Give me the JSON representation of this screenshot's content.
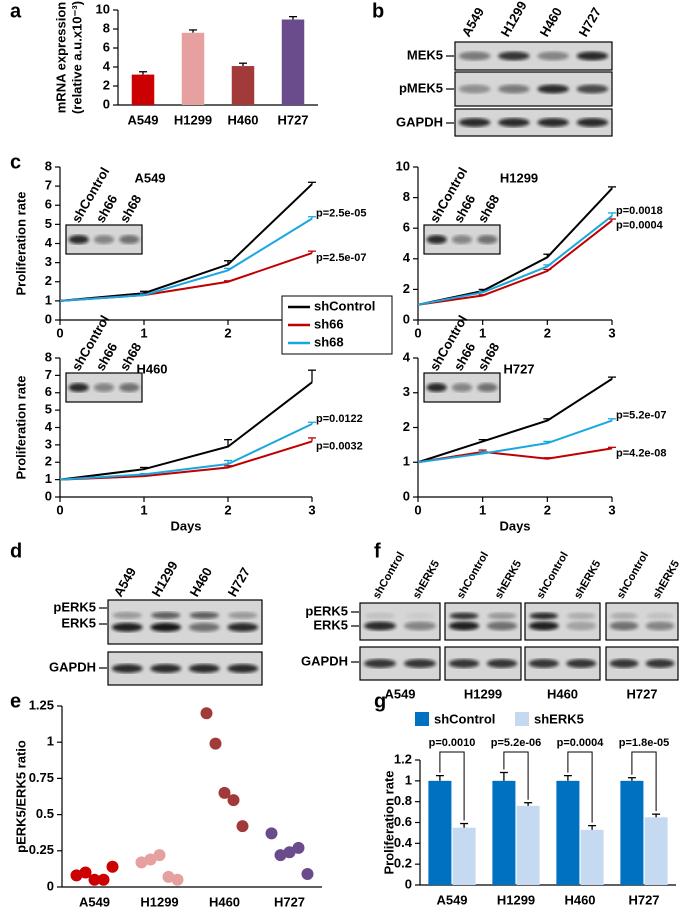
{
  "blots": {
    "b": {
      "panel": "b",
      "lanes": [
        "A549",
        "H1299",
        "H460",
        "H727"
      ],
      "rows": [
        "MEK5",
        "pMEK5",
        "GAPDH"
      ]
    },
    "d": {
      "panel": "d",
      "lanes": [
        "A549",
        "H1299",
        "H460",
        "H727"
      ],
      "rows": [
        "pERK5",
        "ERK5",
        "GAPDH"
      ]
    },
    "f": {
      "panel": "f",
      "lanes": [
        "shControl",
        "shERK5"
      ],
      "groups": [
        "A549",
        "H1299",
        "H460",
        "H727"
      ],
      "rows": [
        "pERK5",
        "ERK5",
        "GAPDH"
      ]
    },
    "c_inset": {
      "lanes": [
        "shControl",
        "sh66",
        "sh68"
      ]
    }
  },
  "chart_data": [
    {
      "type": "bar",
      "panel": "a",
      "ylabel": [
        "mRNA expression",
        "(relative a.u.x10⁻³)"
      ],
      "categories": [
        "A549",
        "H1299",
        "H460",
        "H727"
      ],
      "values": [
        3.2,
        7.6,
        4.1,
        9.0
      ],
      "errors": [
        0.3,
        0.3,
        0.3,
        0.3
      ],
      "colors": [
        "#cc0000",
        "#e6a0a0",
        "#a33a3a",
        "#6a4c8c"
      ],
      "ylim": [
        0,
        10
      ],
      "yticks": [
        0,
        2,
        4,
        6,
        8,
        10
      ]
    },
    {
      "type": "line",
      "panel": "c",
      "title": "A549",
      "ylabel": "Proliferation rate",
      "legend": true,
      "x": [
        0,
        1,
        2,
        3
      ],
      "xlim": [
        0,
        3
      ],
      "xticks": [
        0,
        1,
        2,
        3
      ],
      "ylim": [
        0,
        8
      ],
      "yticks": [
        0,
        1,
        2,
        3,
        4,
        5,
        6,
        7,
        8
      ],
      "series": [
        {
          "name": "shControl",
          "color": "#000000",
          "values": [
            1,
            1.4,
            2.9,
            7.1
          ],
          "errors": [
            0,
            0.1,
            0.2,
            0.1
          ]
        },
        {
          "name": "sh66",
          "color": "#c00000",
          "values": [
            1,
            1.3,
            2.0,
            3.5
          ],
          "errors": [
            0,
            0.05,
            0.05,
            0.1
          ]
        },
        {
          "name": "sh68",
          "color": "#1aa7e0",
          "values": [
            1,
            1.3,
            2.6,
            5.3
          ],
          "errors": [
            0,
            0.05,
            0.1,
            0.1
          ]
        }
      ],
      "annotations": [
        "p=2.5e-05",
        "p=2.5e-07"
      ]
    },
    {
      "type": "line",
      "title": "H1299",
      "x": [
        0,
        1,
        2,
        3
      ],
      "xlim": [
        0,
        3
      ],
      "xticks": [
        0,
        1,
        2,
        3
      ],
      "ylim": [
        0,
        10
      ],
      "yticks": [
        0,
        2,
        4,
        6,
        8,
        10
      ],
      "series": [
        {
          "name": "shControl",
          "color": "#000000",
          "values": [
            1,
            1.9,
            4.1,
            8.6
          ],
          "errors": [
            0,
            0.1,
            0.2,
            0.1
          ]
        },
        {
          "name": "sh66",
          "color": "#c00000",
          "values": [
            1,
            1.6,
            3.2,
            6.5
          ],
          "errors": [
            0,
            0.05,
            0.1,
            0.1
          ]
        },
        {
          "name": "sh68",
          "color": "#1aa7e0",
          "values": [
            1,
            1.8,
            3.5,
            6.8
          ],
          "errors": [
            0,
            0.05,
            0.1,
            0.2
          ]
        }
      ],
      "annotations": [
        "p=0.0018",
        "p=0.0004"
      ]
    },
    {
      "type": "line",
      "title": "H460",
      "ylabel": "Proliferation rate",
      "xlabel": "Days",
      "x": [
        0,
        1,
        2,
        3
      ],
      "xlim": [
        0,
        3
      ],
      "xticks": [
        0,
        1,
        2,
        3
      ],
      "ylim": [
        0,
        8
      ],
      "yticks": [
        0,
        1,
        2,
        3,
        4,
        5,
        6,
        7,
        8
      ],
      "series": [
        {
          "name": "shControl",
          "color": "#000000",
          "values": [
            1,
            1.6,
            2.9,
            6.6
          ],
          "errors": [
            0,
            0.1,
            0.4,
            0.7
          ]
        },
        {
          "name": "sh66",
          "color": "#c00000",
          "values": [
            1,
            1.2,
            1.7,
            3.2
          ],
          "errors": [
            0,
            0.05,
            0.1,
            0.2
          ]
        },
        {
          "name": "sh68",
          "color": "#1aa7e0",
          "values": [
            1,
            1.3,
            1.9,
            4.2
          ],
          "errors": [
            0,
            0.05,
            0.2,
            0.1
          ]
        }
      ],
      "annotations": [
        "p=0.0122",
        "p=0.0032"
      ]
    },
    {
      "type": "line",
      "title": "H727",
      "xlabel": "Days",
      "x": [
        0,
        1,
        2,
        3
      ],
      "xlim": [
        0,
        3
      ],
      "xticks": [
        0,
        1,
        2,
        3
      ],
      "ylim": [
        0,
        4
      ],
      "yticks": [
        0,
        1,
        2,
        3,
        4
      ],
      "series": [
        {
          "name": "shControl",
          "color": "#000000",
          "values": [
            1,
            1.6,
            2.2,
            3.4
          ],
          "errors": [
            0,
            0.05,
            0.05,
            0.05
          ]
        },
        {
          "name": "sh66",
          "color": "#c00000",
          "values": [
            1,
            1.3,
            1.1,
            1.4
          ],
          "errors": [
            0,
            0.05,
            0.03,
            0.03
          ]
        },
        {
          "name": "sh68",
          "color": "#1aa7e0",
          "values": [
            1,
            1.25,
            1.55,
            2.2
          ],
          "errors": [
            0,
            0.05,
            0.05,
            0.05
          ]
        }
      ],
      "annotations": [
        "p=5.2e-07",
        "p=4.2e-08"
      ]
    },
    {
      "type": "strip",
      "panel": "e",
      "ylabel": "pERK5/ERK5 ratio",
      "categories": [
        "A549",
        "H1299",
        "H460",
        "H727"
      ],
      "values": [
        [
          0.08,
          0.1,
          0.05,
          0.05,
          0.14
        ],
        [
          0.17,
          0.19,
          0.22,
          0.07,
          0.05
        ],
        [
          1.2,
          0.99,
          0.65,
          0.6,
          0.42
        ],
        [
          0.37,
          0.22,
          0.24,
          0.27,
          0.09
        ]
      ],
      "colors": [
        "#cc0000",
        "#e6a0a0",
        "#a33a3a",
        "#6a4c8c"
      ],
      "ylim": [
        0,
        1.25
      ],
      "yticks": [
        0,
        0.25,
        0.5,
        0.75,
        1,
        1.25
      ]
    },
    {
      "type": "grouped",
      "panel": "g",
      "ylabel": "Proliferation rate",
      "categories": [
        "A549",
        "H1299",
        "H460",
        "H727"
      ],
      "ylim": [
        0,
        1.2
      ],
      "yticks": [
        0,
        0.2,
        0.4,
        0.6,
        0.8,
        1,
        1.2
      ],
      "series": [
        {
          "name": "shControl",
          "color": "#0070c0",
          "values": [
            1,
            1,
            1,
            1
          ],
          "errors": [
            0.05,
            0.08,
            0.05,
            0.03
          ]
        },
        {
          "name": "shERK5",
          "color": "#c5d9f1",
          "values": [
            0.55,
            0.76,
            0.53,
            0.65
          ],
          "errors": [
            0.04,
            0.03,
            0.04,
            0.03
          ]
        }
      ],
      "annotations": [
        "p=0.0010",
        "p=5.2e-06",
        "p=0.0004",
        "p=1.8e-05"
      ]
    }
  ]
}
